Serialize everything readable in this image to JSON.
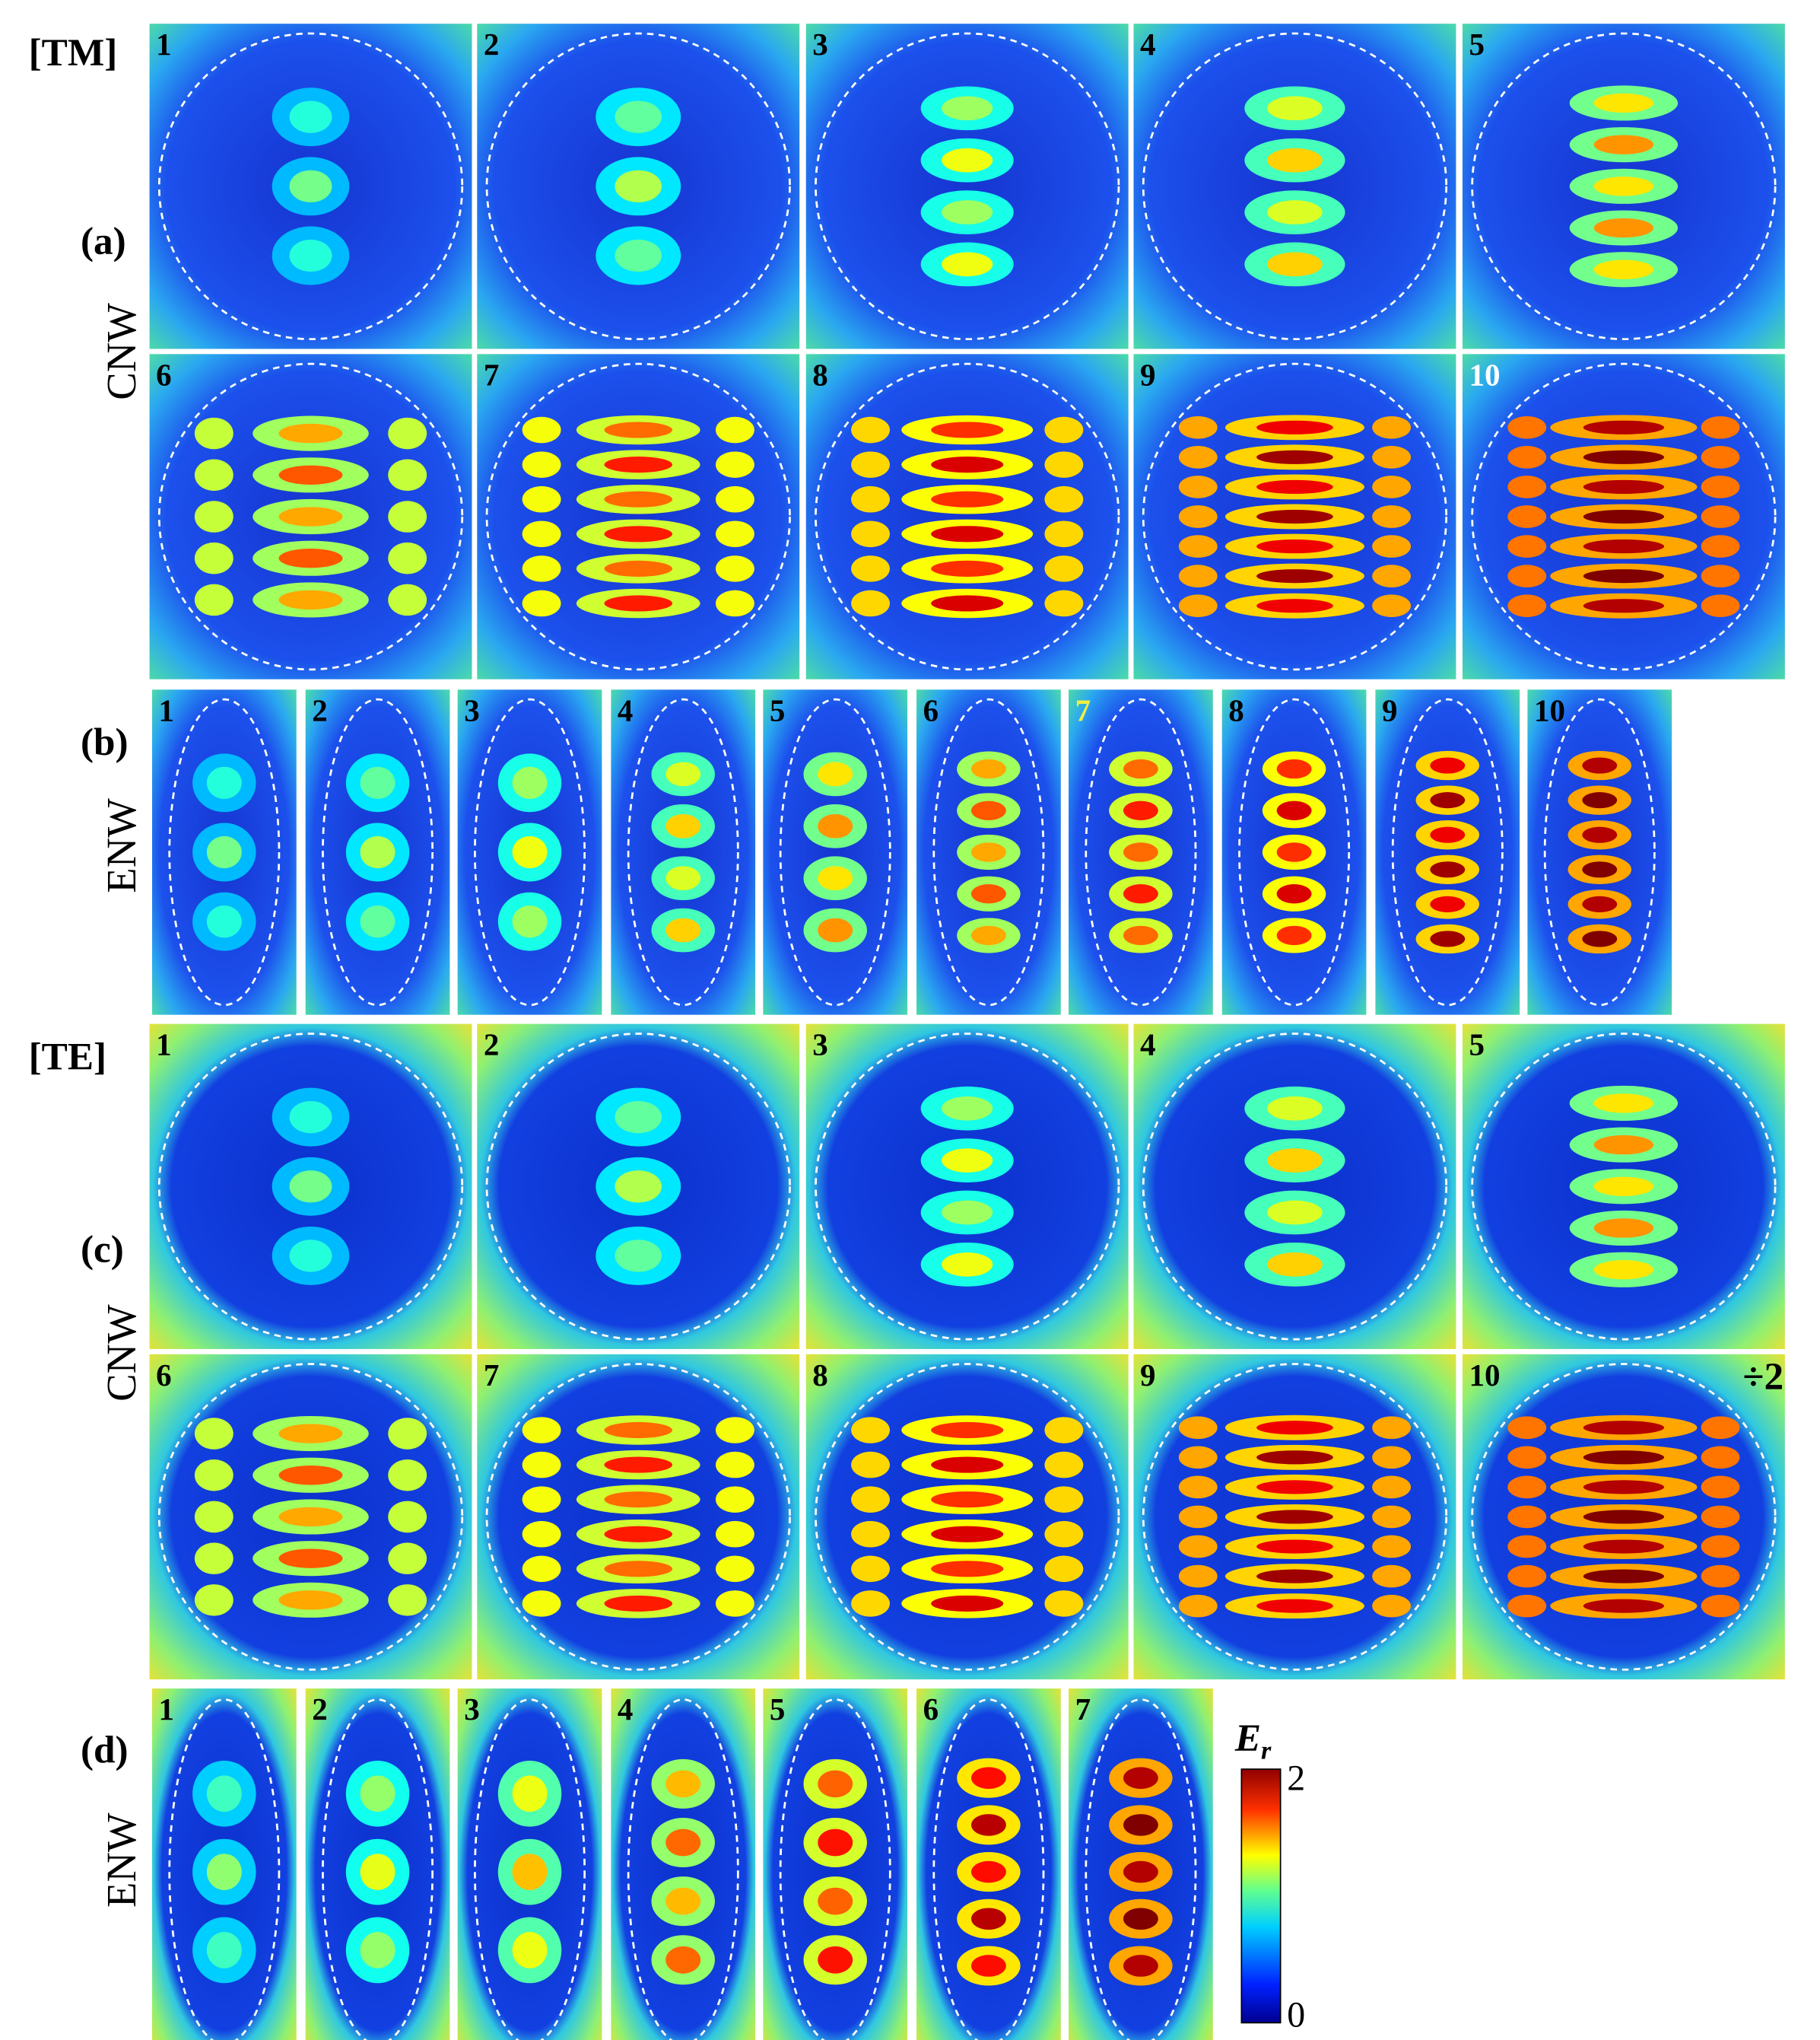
{
  "groups": [
    {
      "heading": "[TM]",
      "rows": [
        {
          "label": "(a)",
          "side": "CNW",
          "panels": [
            "1",
            "2",
            "3",
            "4",
            "5",
            "6",
            "7",
            "8",
            "9",
            "10"
          ]
        },
        {
          "label": "(b)",
          "side": "ENW",
          "panels": [
            "1",
            "2",
            "3",
            "4",
            "5",
            "6",
            "7",
            "8",
            "9",
            "10"
          ]
        }
      ]
    },
    {
      "heading": "[TE]",
      "rows": [
        {
          "label": "(c)",
          "side": "CNW",
          "panels": [
            "1",
            "2",
            "3",
            "4",
            "5",
            "6",
            "7",
            "8",
            "9",
            "10"
          ]
        },
        {
          "label": "(d)",
          "side": "ENW",
          "panels": [
            "1",
            "2",
            "3",
            "4",
            "5",
            "6",
            "7"
          ]
        }
      ]
    }
  ],
  "annotation": "÷2",
  "colorbar": {
    "symbol": "E",
    "subscript": "r",
    "max": "2",
    "min": "0"
  }
}
